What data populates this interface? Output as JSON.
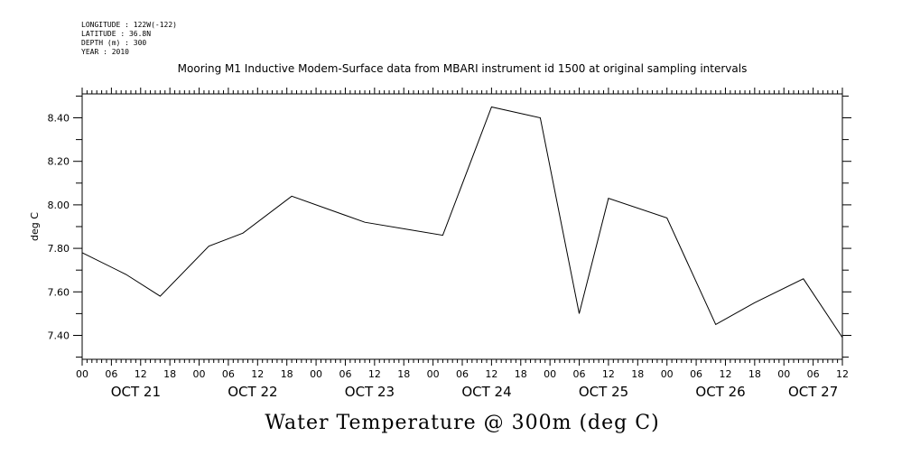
{
  "header": {
    "lines": [
      "LONGITUDE : 122W(-122)",
      "LATITUDE : 36.8N",
      "DEPTH (m) : 300",
      "YEAR : 2010"
    ]
  },
  "chart_data": {
    "type": "line",
    "title": "Mooring M1 Inductive Modem-Surface data from MBARI instrument id 1500 at original sampling intervals",
    "xlabel": "Water Temperature @ 300m (deg C)",
    "ylabel": "deg C",
    "x_unit": "hours after OCT 21 00:00",
    "xlim": [
      0,
      156
    ],
    "ylim": [
      7.29,
      8.51
    ],
    "y_ticks": [
      7.4,
      7.6,
      7.8,
      8.0,
      8.2,
      8.4
    ],
    "y_tick_labels": [
      "7.40",
      "7.60",
      "7.80",
      "8.00",
      "8.20",
      "8.40"
    ],
    "x_ticks": [
      0,
      6,
      12,
      18,
      24,
      30,
      36,
      42,
      48,
      54,
      60,
      66,
      72,
      78,
      84,
      90,
      96,
      102,
      108,
      114,
      120,
      126,
      132,
      138,
      144,
      150,
      156
    ],
    "x_tick_labels": [
      "00",
      "06",
      "12",
      "18",
      "00",
      "06",
      "12",
      "18",
      "00",
      "06",
      "12",
      "18",
      "00",
      "06",
      "12",
      "18",
      "00",
      "06",
      "12",
      "18",
      "00",
      "06",
      "12",
      "18",
      "00",
      "06",
      "12"
    ],
    "day_labels": [
      {
        "label": "OCT 21",
        "x": 11
      },
      {
        "label": "OCT 22",
        "x": 35
      },
      {
        "label": "OCT 23",
        "x": 59
      },
      {
        "label": "OCT 24",
        "x": 83
      },
      {
        "label": "OCT 25",
        "x": 107
      },
      {
        "label": "OCT 26",
        "x": 131
      },
      {
        "label": "OCT 27",
        "x": 150
      }
    ],
    "grid": false,
    "series": [
      {
        "x": [
          0,
          9,
          16,
          26,
          33,
          43,
          58,
          74,
          84,
          94,
          102,
          108,
          120,
          130,
          138,
          148,
          156
        ],
        "values": [
          7.78,
          7.68,
          7.58,
          7.81,
          7.87,
          8.04,
          7.92,
          7.86,
          8.45,
          8.4,
          7.5,
          8.03,
          7.94,
          7.45,
          7.55,
          7.66,
          7.39
        ]
      }
    ]
  }
}
